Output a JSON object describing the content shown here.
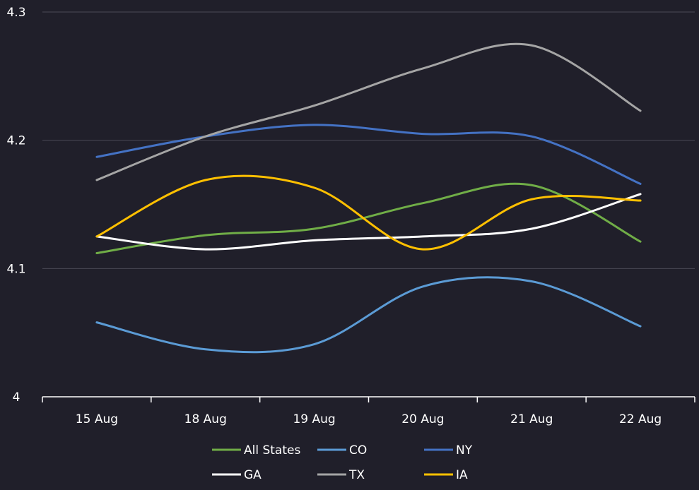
{
  "chart_data": {
    "type": "line",
    "categories": [
      "15 Aug",
      "18 Aug",
      "19 Aug",
      "20 Aug",
      "21 Aug",
      "22 Aug"
    ],
    "ylim": [
      4,
      4.3
    ],
    "yticks": [
      "4",
      "4.1",
      "4.2",
      "4.3"
    ],
    "grid": true,
    "legend_position": "bottom",
    "series": [
      {
        "name": "All States",
        "color": "#70ad47",
        "values": [
          4.112,
          4.126,
          4.131,
          4.151,
          4.165,
          4.121
        ]
      },
      {
        "name": "CO",
        "color": "#5b9bd5",
        "values": [
          4.058,
          4.037,
          4.041,
          4.086,
          4.09,
          4.055
        ]
      },
      {
        "name": "NY",
        "color": "#4472c4",
        "values": [
          4.187,
          4.203,
          4.212,
          4.205,
          4.203,
          4.166
        ]
      },
      {
        "name": "GA",
        "color": "#ffffff",
        "values": [
          4.125,
          4.115,
          4.122,
          4.125,
          4.131,
          4.158
        ]
      },
      {
        "name": "TX",
        "color": "#a5a5a5",
        "values": [
          4.169,
          4.203,
          4.227,
          4.256,
          4.274,
          4.223
        ]
      },
      {
        "name": "IA",
        "color": "#ffc000",
        "values": [
          4.125,
          4.169,
          4.163,
          4.115,
          4.154,
          4.153
        ]
      }
    ]
  }
}
